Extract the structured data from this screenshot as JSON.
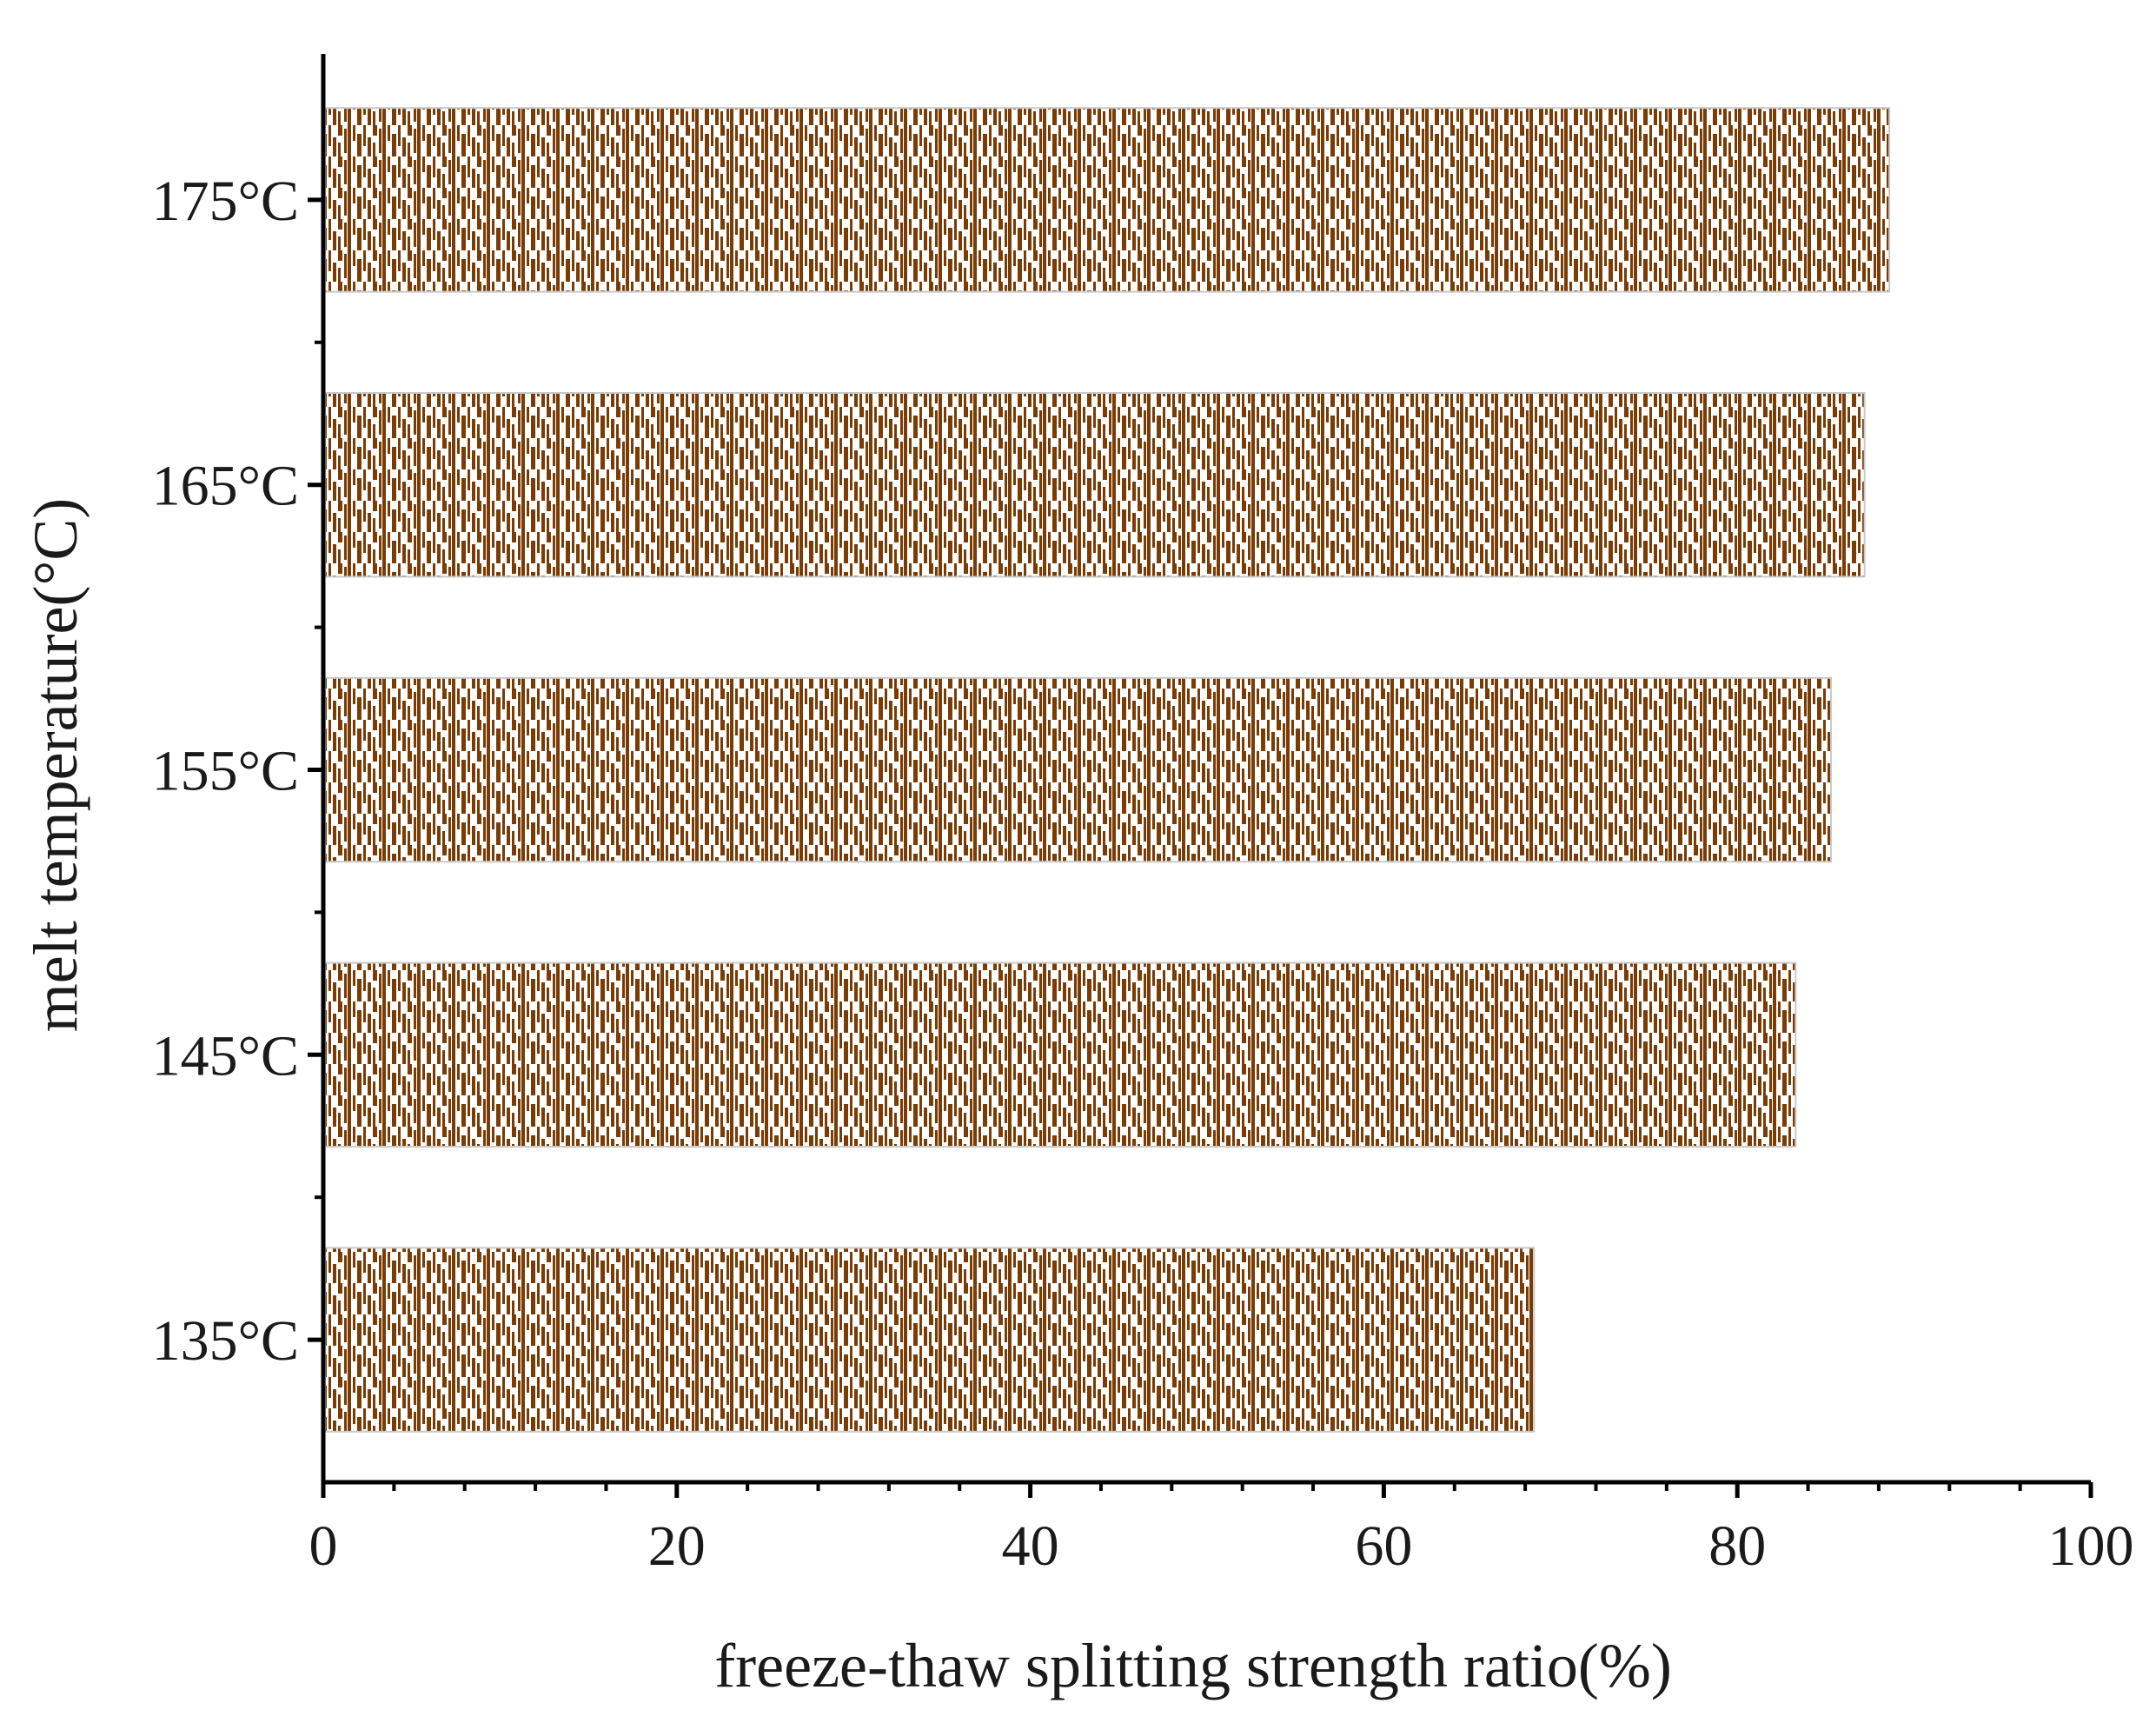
{
  "chart_data": {
    "type": "bar",
    "orientation": "horizontal",
    "categories": [
      "135°C",
      "145°C",
      "155°C",
      "165°C",
      "175°C"
    ],
    "values": [
      68.5,
      83.3,
      85.3,
      87.2,
      88.6
    ],
    "xlabel": "freeze-thaw splitting strength ratio(%)",
    "ylabel": "melt temperature(°C)",
    "xlim": [
      0,
      100
    ],
    "xticks": [
      "0",
      "20",
      "40",
      "60",
      "80",
      "100"
    ],
    "grid": false,
    "legend": "none",
    "bar_color": "#7a3b05",
    "bar_pattern": "dense vertical hatch"
  }
}
